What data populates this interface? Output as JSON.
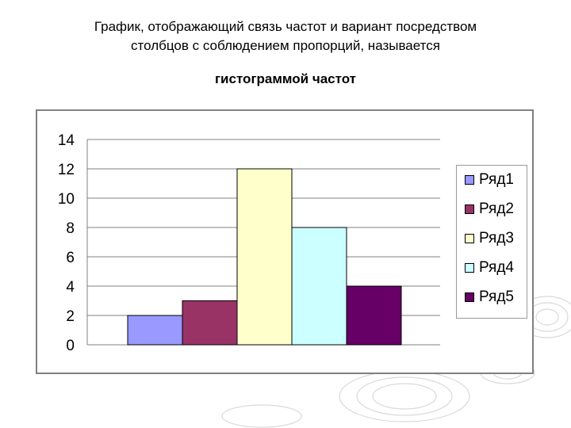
{
  "slide": {
    "title_lines": [
      "График, отображающий связь частот и вариант посредством",
      "столбцов с соблюдением пропорций, называется"
    ],
    "subtitle": "гистограммой частот"
  },
  "chart_data": {
    "type": "bar",
    "title": "",
    "xlabel": "",
    "ylabel": "",
    "ylim": [
      0,
      14
    ],
    "yticks": [
      0,
      2,
      4,
      6,
      8,
      10,
      12,
      14
    ],
    "grid": true,
    "legend_position": "right",
    "series": [
      {
        "name": "Ряд1",
        "values": [
          2
        ],
        "color": "#9999ff"
      },
      {
        "name": "Ряд2",
        "values": [
          3
        ],
        "color": "#993366"
      },
      {
        "name": "Ряд3",
        "values": [
          12
        ],
        "color": "#ffffcc"
      },
      {
        "name": "Ряд4",
        "values": [
          8
        ],
        "color": "#ccffff"
      },
      {
        "name": "Ряд5",
        "values": [
          4
        ],
        "color": "#660066"
      }
    ]
  }
}
